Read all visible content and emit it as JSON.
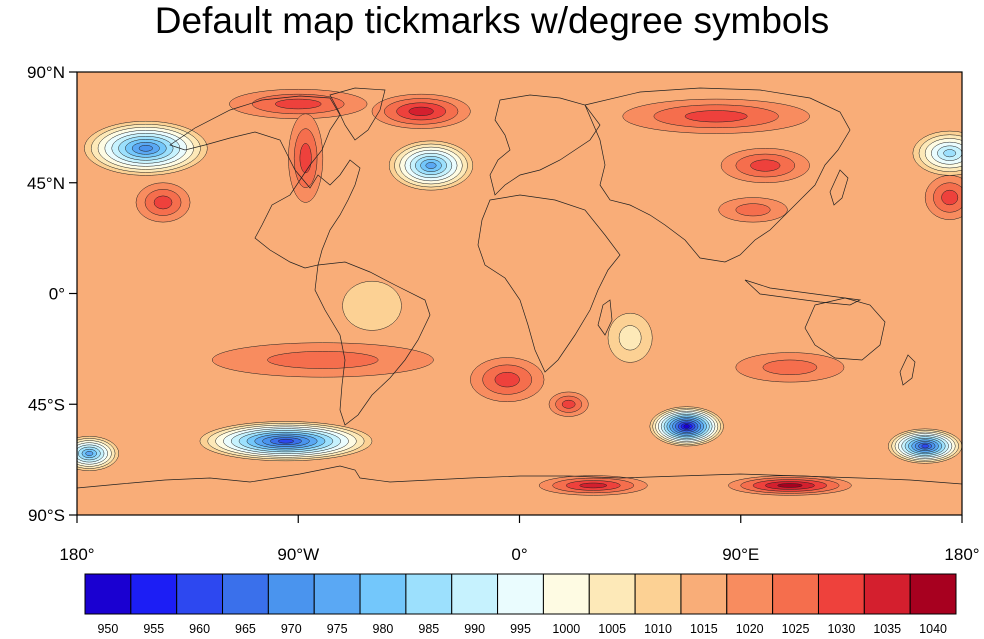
{
  "title": "Default map tickmarks w/degree symbols",
  "map": {
    "projection": "cylindrical-equidistant",
    "lon_range": [
      -180,
      180
    ],
    "lat_range": [
      -90,
      90
    ],
    "y_ticks": [
      {
        "lat": 90,
        "label": "90°N"
      },
      {
        "lat": 45,
        "label": "45°N"
      },
      {
        "lat": 0,
        "label": "0°"
      },
      {
        "lat": -45,
        "label": "45°S"
      },
      {
        "lat": -90,
        "label": "90°S"
      }
    ],
    "x_ticks": [
      {
        "lon": -180,
        "label": "180°"
      },
      {
        "lon": -90,
        "label": "90°W"
      },
      {
        "lon": 0,
        "label": "0°"
      },
      {
        "lon": 90,
        "label": "90°E"
      },
      {
        "lon": 180,
        "label": "180°"
      }
    ],
    "background_level": 1015,
    "features": [
      {
        "name": "aleutian-low",
        "lon": -152,
        "lat": 59,
        "value": 970,
        "rx": 25,
        "ry": 11
      },
      {
        "name": "north-pacific-low-east",
        "lon": 175,
        "lat": 57,
        "value": 985,
        "rx": 15,
        "ry": 9
      },
      {
        "name": "icelandic-low",
        "lon": -36,
        "lat": 52,
        "value": 975,
        "rx": 17,
        "ry": 10
      },
      {
        "name": "arctic-high-1",
        "lon": -90,
        "lat": 77,
        "value": 1030,
        "rx": 28,
        "ry": 6
      },
      {
        "name": "arctic-high-2",
        "lon": -40,
        "lat": 74,
        "value": 1035,
        "rx": 20,
        "ry": 7
      },
      {
        "name": "arctic-high-3",
        "lon": 80,
        "lat": 72,
        "value": 1030,
        "rx": 38,
        "ry": 7
      },
      {
        "name": "greenland-high",
        "lon": -87,
        "lat": 55,
        "value": 1030,
        "rx": 7,
        "ry": 18
      },
      {
        "name": "siberian-high",
        "lon": 100,
        "lat": 52,
        "value": 1030,
        "rx": 18,
        "ry": 7
      },
      {
        "name": "asia-high",
        "lon": 95,
        "lat": 34,
        "value": 1025,
        "rx": 14,
        "ry": 5
      },
      {
        "name": "pacific-high-east",
        "lon": -145,
        "lat": 37,
        "value": 1030,
        "rx": 11,
        "ry": 8
      },
      {
        "name": "pacific-high-west",
        "lon": 175,
        "lat": 39,
        "value": 1030,
        "rx": 10,
        "ry": 9
      },
      {
        "name": "south-pacific-high",
        "lon": -80,
        "lat": -27,
        "value": 1025,
        "rx": 45,
        "ry": 7
      },
      {
        "name": "south-atlantic-high",
        "lon": -5,
        "lat": -35,
        "value": 1030,
        "rx": 15,
        "ry": 9
      },
      {
        "name": "indian-ocean-high",
        "lon": 20,
        "lat": -45,
        "value": 1030,
        "rx": 8,
        "ry": 5
      },
      {
        "name": "south-indian-high",
        "lon": 110,
        "lat": -30,
        "value": 1025,
        "rx": 22,
        "ry": 6
      },
      {
        "name": "antarctic-high-1",
        "lon": 30,
        "lat": -78,
        "value": 1035,
        "rx": 22,
        "ry": 4
      },
      {
        "name": "antarctic-high-2",
        "lon": 110,
        "lat": -78,
        "value": 1040,
        "rx": 25,
        "ry": 4
      },
      {
        "name": "southern-ocean-low-1",
        "lon": -95,
        "lat": -60,
        "value": 960,
        "rx": 35,
        "ry": 8
      },
      {
        "name": "southern-ocean-low-2",
        "lon": 68,
        "lat": -54,
        "value": 950,
        "rx": 15,
        "ry": 8
      },
      {
        "name": "southern-ocean-low-3",
        "lon": 165,
        "lat": -62,
        "value": 960,
        "rx": 15,
        "ry": 7
      },
      {
        "name": "southern-ocean-low-4",
        "lon": -175,
        "lat": -65,
        "value": 975,
        "rx": 12,
        "ry": 7
      },
      {
        "name": "equatorial-africa-low",
        "lon": 45,
        "lat": -18,
        "value": 1005,
        "rx": 9,
        "ry": 10
      },
      {
        "name": "amazon-low",
        "lon": -60,
        "lat": -5,
        "value": 1010,
        "rx": 12,
        "ry": 10
      }
    ]
  },
  "colorbar": {
    "labels": [
      "950",
      "955",
      "960",
      "965",
      "970",
      "975",
      "980",
      "985",
      "990",
      "995",
      "1000",
      "1005",
      "1010",
      "1015",
      "1020",
      "1025",
      "1030",
      "1035",
      "1040"
    ],
    "colors": [
      "#1a00d1",
      "#1c1ef5",
      "#2d48f0",
      "#3a70eb",
      "#4a94ee",
      "#5aa8f4",
      "#73c7fb",
      "#9ce0fd",
      "#c6f2fe",
      "#eafcfe",
      "#fefbe3",
      "#fde9b8",
      "#fcd194",
      "#f9ad78",
      "#f88c5f",
      "#f56e4d",
      "#ee413c",
      "#d41f2e",
      "#a7001f"
    ]
  }
}
